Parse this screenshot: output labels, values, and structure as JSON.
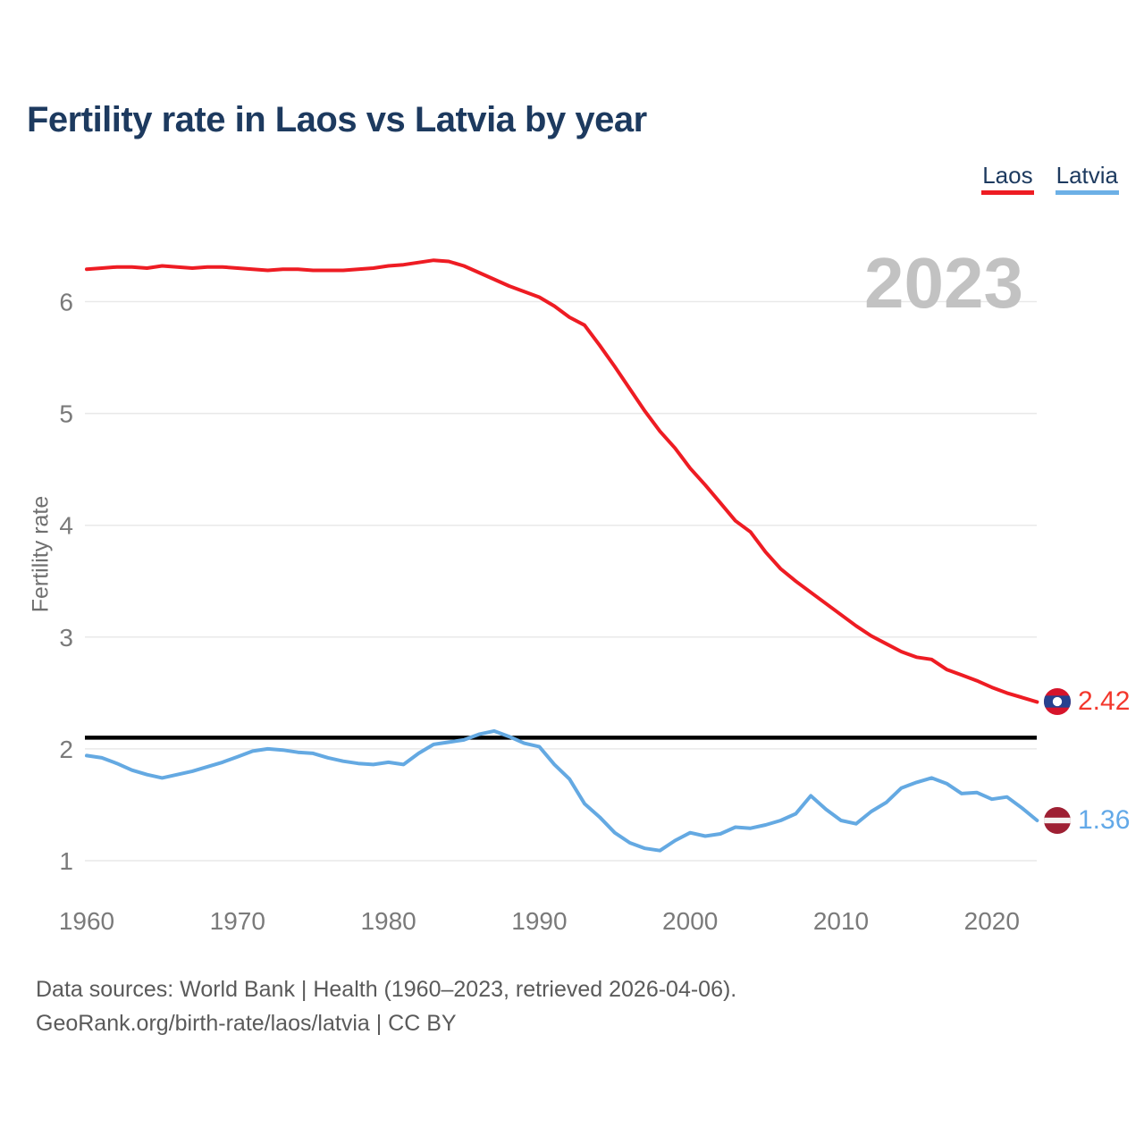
{
  "title": "Fertility rate in Laos vs Latvia by year",
  "watermark": "2023",
  "legend": {
    "items": [
      {
        "label": "Laos",
        "color": "#ee1c23"
      },
      {
        "label": "Latvia",
        "color": "#6cb0e6"
      }
    ]
  },
  "y_axis_label": "Fertility rate",
  "end_labels": {
    "laos": {
      "value": "2.42",
      "flag": "laos-flag-icon"
    },
    "latvia": {
      "value": "1.36",
      "flag": "latvia-flag-icon"
    }
  },
  "footer": {
    "line1": "Data sources: World Bank | Health (1960–2023, retrieved 2026-04-06).",
    "line2": "GeoRank.org/birth-rate/laos/latvia | CC BY"
  },
  "chart_data": {
    "type": "line",
    "title": "Fertility rate in Laos vs Latvia by year",
    "xlabel": "",
    "ylabel": "Fertility rate",
    "x_ticks": [
      1960,
      1970,
      1980,
      1990,
      2000,
      2010,
      2020
    ],
    "y_ticks": [
      1,
      2,
      3,
      4,
      5,
      6
    ],
    "xlim": [
      1960,
      2023
    ],
    "ylim": [
      0.8,
      6.6
    ],
    "grid": "horizontal",
    "legend_position": "top-right",
    "reference_line": {
      "value": 2.1,
      "color": "#000000"
    },
    "x": [
      1960,
      1961,
      1962,
      1963,
      1964,
      1965,
      1966,
      1967,
      1968,
      1969,
      1970,
      1971,
      1972,
      1973,
      1974,
      1975,
      1976,
      1977,
      1978,
      1979,
      1980,
      1981,
      1982,
      1983,
      1984,
      1985,
      1986,
      1987,
      1988,
      1989,
      1990,
      1991,
      1992,
      1993,
      1994,
      1995,
      1996,
      1997,
      1998,
      1999,
      2000,
      2001,
      2002,
      2003,
      2004,
      2005,
      2006,
      2007,
      2008,
      2009,
      2010,
      2011,
      2012,
      2013,
      2014,
      2015,
      2016,
      2017,
      2018,
      2019,
      2020,
      2021,
      2022,
      2023
    ],
    "series": [
      {
        "name": "Laos",
        "color": "#ee1c23",
        "values": [
          6.29,
          6.3,
          6.31,
          6.31,
          6.3,
          6.32,
          6.31,
          6.3,
          6.31,
          6.31,
          6.3,
          6.29,
          6.28,
          6.29,
          6.29,
          6.28,
          6.28,
          6.28,
          6.29,
          6.3,
          6.32,
          6.33,
          6.35,
          6.37,
          6.36,
          6.32,
          6.26,
          6.2,
          6.14,
          6.09,
          6.04,
          5.96,
          5.86,
          5.79,
          5.61,
          5.42,
          5.22,
          5.02,
          4.84,
          4.69,
          4.51,
          4.36,
          4.2,
          4.04,
          3.94,
          3.76,
          3.61,
          3.5,
          3.4,
          3.3,
          3.2,
          3.1,
          3.01,
          2.94,
          2.87,
          2.82,
          2.8,
          2.71,
          2.66,
          2.61,
          2.55,
          2.5,
          2.46,
          2.42
        ]
      },
      {
        "name": "Latvia",
        "color": "#64a9e2",
        "values": [
          1.94,
          1.92,
          1.87,
          1.81,
          1.77,
          1.74,
          1.77,
          1.8,
          1.84,
          1.88,
          1.93,
          1.98,
          2.0,
          1.99,
          1.97,
          1.96,
          1.92,
          1.89,
          1.87,
          1.86,
          1.88,
          1.86,
          1.96,
          2.04,
          2.06,
          2.08,
          2.13,
          2.16,
          2.11,
          2.05,
          2.02,
          1.86,
          1.73,
          1.51,
          1.39,
          1.25,
          1.16,
          1.11,
          1.09,
          1.18,
          1.25,
          1.22,
          1.24,
          1.3,
          1.29,
          1.32,
          1.36,
          1.42,
          1.58,
          1.46,
          1.36,
          1.33,
          1.44,
          1.52,
          1.65,
          1.7,
          1.74,
          1.69,
          1.6,
          1.61,
          1.55,
          1.57,
          1.47,
          1.36
        ]
      }
    ]
  }
}
